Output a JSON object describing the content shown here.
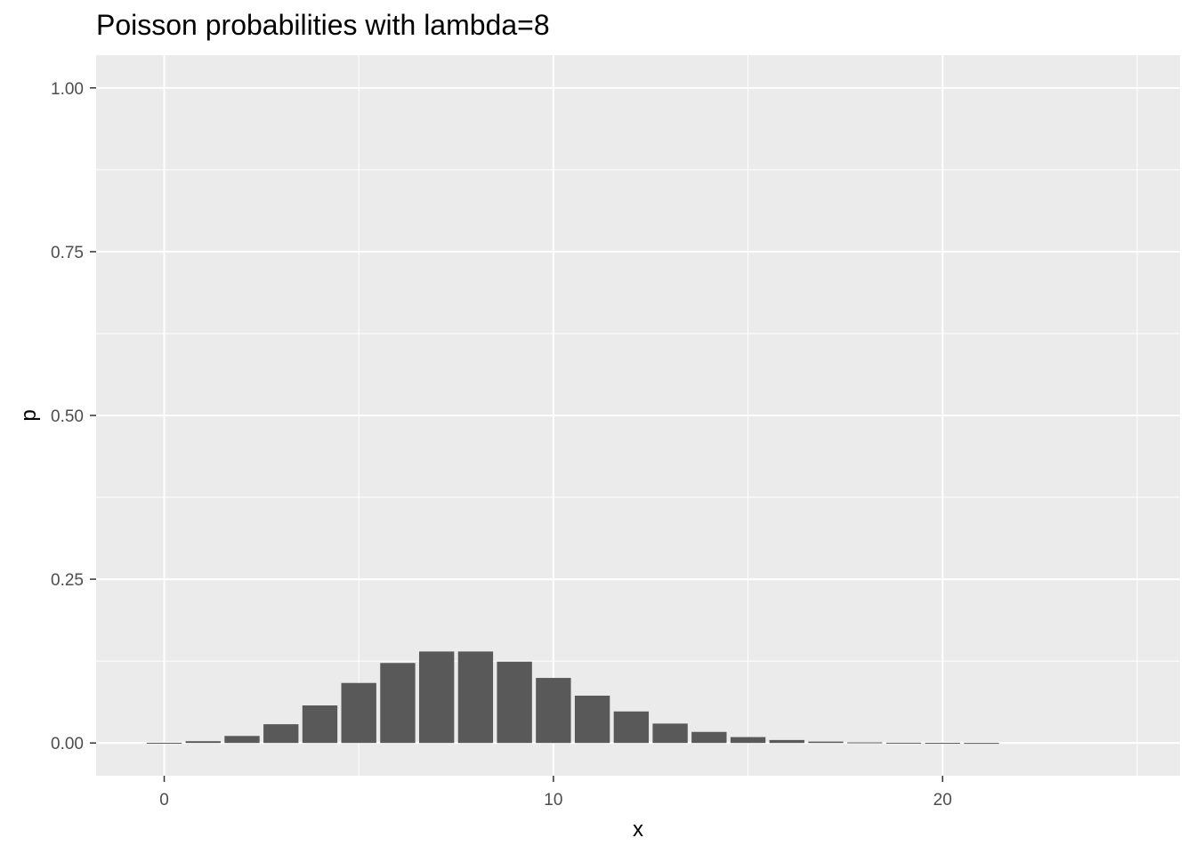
{
  "chart_data": {
    "type": "bar",
    "title": "Poisson probabilities with lambda=8",
    "xlabel": "x",
    "ylabel": "p",
    "xlim": [
      -1.75,
      26.1
    ],
    "ylim": [
      -0.05,
      1.05
    ],
    "x_ticks": [
      0,
      10,
      20
    ],
    "y_ticks": [
      0.0,
      0.25,
      0.5,
      0.75,
      1.0
    ],
    "x_tick_labels": [
      "0",
      "10",
      "20"
    ],
    "y_tick_labels": [
      "0.00",
      "0.25",
      "0.50",
      "0.75",
      "1.00"
    ],
    "grid": true,
    "colors": {
      "panel": "#ebebeb",
      "grid": "#ffffff",
      "bar": "#595959"
    },
    "x": [
      0,
      1,
      2,
      3,
      4,
      5,
      6,
      7,
      8,
      9,
      10,
      11,
      12,
      13,
      14,
      15,
      16,
      17,
      18,
      19,
      20,
      21
    ],
    "values": [
      0.0003,
      0.0027,
      0.0107,
      0.0286,
      0.0573,
      0.0916,
      0.1221,
      0.1396,
      0.1396,
      0.1241,
      0.0993,
      0.0722,
      0.0481,
      0.0296,
      0.0169,
      0.009,
      0.0045,
      0.0021,
      0.0009,
      0.0004,
      0.0002,
      0.0001
    ]
  }
}
